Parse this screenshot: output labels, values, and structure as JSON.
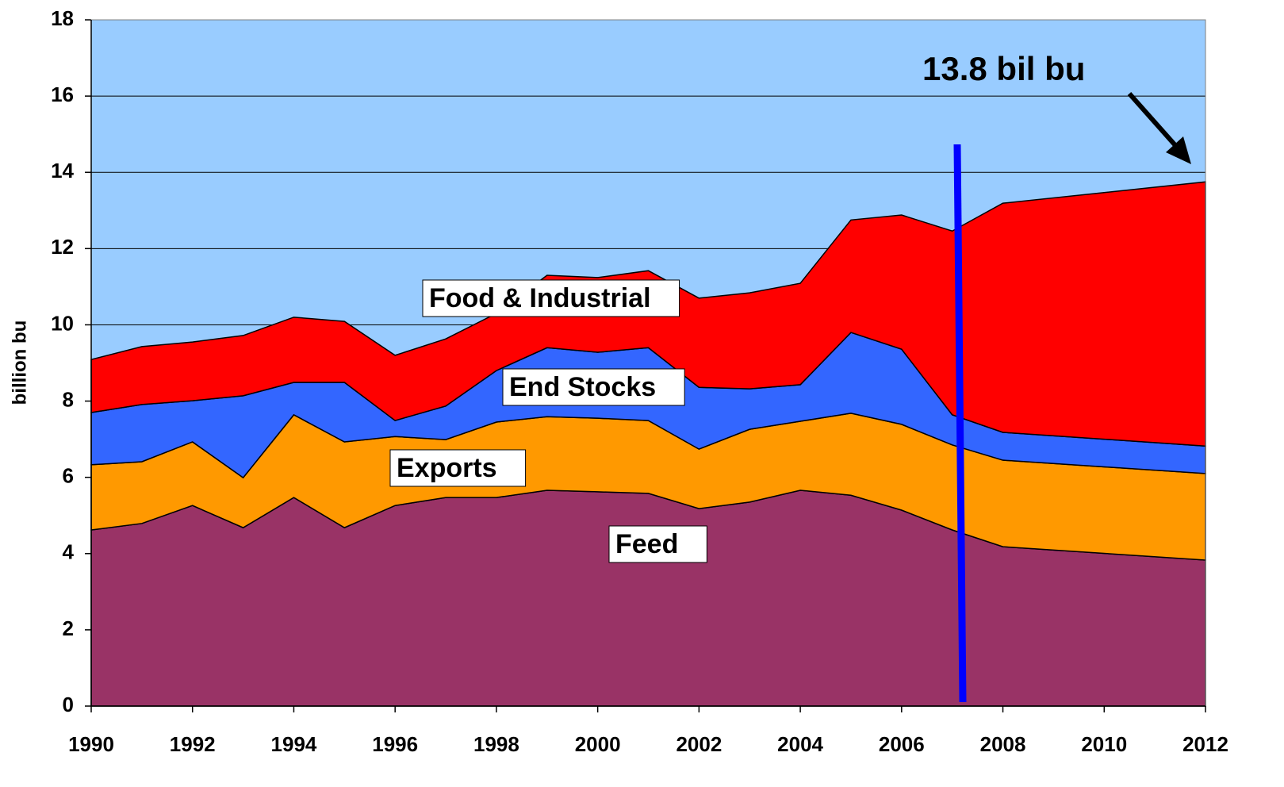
{
  "chart_data": {
    "type": "stacked-area",
    "y_label": "billion bu",
    "x": [
      1990,
      1991,
      1992,
      1993,
      1994,
      1995,
      1996,
      1997,
      1998,
      1999,
      2000,
      2001,
      2002,
      2003,
      2004,
      2005,
      2006,
      2007,
      2008,
      2012
    ],
    "series": [
      {
        "name": "Feed",
        "color": "#993366",
        "values": [
          4.62,
          4.79,
          5.26,
          4.68,
          5.47,
          4.68,
          5.26,
          5.47,
          5.47,
          5.66,
          5.62,
          5.58,
          5.18,
          5.35,
          5.66,
          5.53,
          5.14,
          4.62,
          4.18,
          3.83
        ]
      },
      {
        "name": "Exports",
        "color": "#ff9900",
        "values": [
          1.71,
          1.62,
          1.67,
          1.31,
          2.17,
          2.25,
          1.81,
          1.52,
          1.98,
          1.93,
          1.93,
          1.91,
          1.56,
          1.91,
          1.81,
          2.15,
          2.25,
          2.23,
          2.27,
          2.27
        ]
      },
      {
        "name": "End Stocks",
        "color": "#3366ff",
        "values": [
          1.37,
          1.5,
          1.08,
          2.15,
          0.85,
          1.56,
          0.42,
          0.88,
          1.35,
          1.81,
          1.73,
          1.91,
          1.62,
          1.06,
          0.96,
          2.12,
          1.97,
          0.79,
          0.73,
          0.72
        ]
      },
      {
        "name": "Food & Industrial",
        "color": "#ff0000",
        "values": [
          1.39,
          1.52,
          1.54,
          1.58,
          1.71,
          1.6,
          1.71,
          1.76,
          1.5,
          1.9,
          1.96,
          2.02,
          2.34,
          2.52,
          2.66,
          2.95,
          3.52,
          4.82,
          6.01,
          6.93
        ]
      }
    ],
    "annotations": [
      "13.8 bil bu"
    ],
    "xlim": [
      1990,
      2012
    ],
    "xticks": [
      1990,
      1992,
      1994,
      1996,
      1998,
      2000,
      2002,
      2004,
      2006,
      2008,
      2010,
      2012
    ],
    "ylim": [
      0,
      18
    ],
    "yticks": [
      0,
      2,
      4,
      6,
      8,
      10,
      12,
      14,
      16,
      18
    ],
    "grid": true,
    "background": "#99ccff"
  }
}
